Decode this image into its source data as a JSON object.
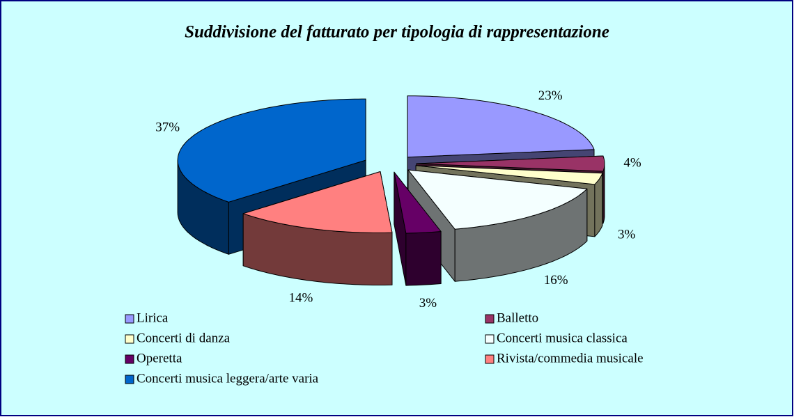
{
  "chart_data": {
    "type": "pie3d",
    "title": "Suddivisione del fatturato per tipologia di rappresentazione",
    "categories": [
      "Lirica",
      "Balletto",
      "Concerti di danza",
      "Concerti musica classica",
      "Operetta",
      "Rivista/commedia musicale",
      "Concerti musica leggera/arte varia"
    ],
    "values": [
      23,
      4,
      3,
      16,
      3,
      14,
      37
    ],
    "value_labels": [
      "23%",
      "4%",
      "3%",
      "16%",
      "3%",
      "14%",
      "37%"
    ],
    "colors": [
      "#9999ff",
      "#993366",
      "#ffffcc",
      "#f4ffff",
      "#660066",
      "#ff8080",
      "#0066cc"
    ],
    "legend": "bottom"
  }
}
